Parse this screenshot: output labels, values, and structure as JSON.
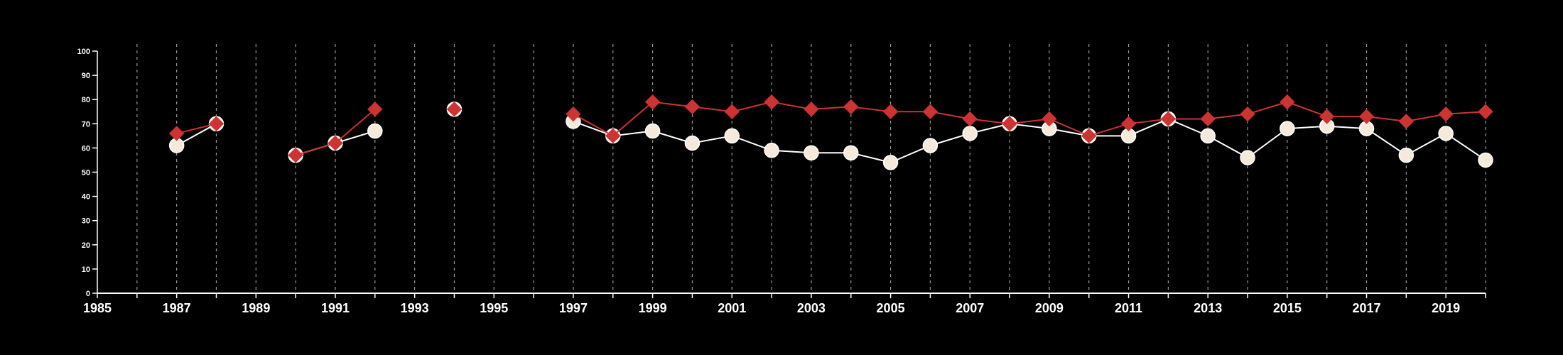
{
  "chart_data": {
    "type": "line",
    "title": "",
    "xlabel": "",
    "ylabel": "",
    "xlim": [
      1985,
      2020
    ],
    "ylim": [
      0,
      100
    ],
    "xticks": [
      1985,
      1987,
      1989,
      1991,
      1993,
      1995,
      1997,
      1999,
      2001,
      2003,
      2005,
      2007,
      2009,
      2011,
      2013,
      2015,
      2017,
      2019
    ],
    "yticks": [
      0,
      10,
      20,
      30,
      40,
      50,
      60,
      70,
      80,
      90,
      100
    ],
    "grid": "vertical dashed lines every year",
    "legend": "none",
    "series": [
      {
        "marker": "circle",
        "color": "#ffffff",
        "marker_fill": "#f5e9dc",
        "points": [
          [
            1987,
            61
          ],
          [
            1988,
            70
          ],
          [
            1990,
            57
          ],
          [
            1991,
            62
          ],
          [
            1992,
            67
          ],
          [
            1994,
            76
          ],
          [
            1997,
            71
          ],
          [
            1998,
            65
          ],
          [
            1999,
            67
          ],
          [
            2000,
            62
          ],
          [
            2001,
            65
          ],
          [
            2002,
            59
          ],
          [
            2003,
            58
          ],
          [
            2004,
            58
          ],
          [
            2005,
            54
          ],
          [
            2006,
            61
          ],
          [
            2007,
            66
          ],
          [
            2008,
            70
          ],
          [
            2009,
            68
          ],
          [
            2010,
            65
          ],
          [
            2011,
            65
          ],
          [
            2012,
            72
          ],
          [
            2013,
            65
          ],
          [
            2014,
            56
          ],
          [
            2015,
            68
          ],
          [
            2016,
            69
          ],
          [
            2017,
            68
          ],
          [
            2018,
            57
          ],
          [
            2019,
            66
          ],
          [
            2020,
            55
          ]
        ]
      },
      {
        "marker": "diamond",
        "color": "#cc3333",
        "marker_fill": "#cc3333",
        "points": [
          [
            1987,
            66
          ],
          [
            1988,
            70
          ],
          [
            1990,
            57
          ],
          [
            1991,
            62
          ],
          [
            1992,
            76
          ],
          [
            1994,
            76
          ],
          [
            1997,
            74
          ],
          [
            1998,
            65
          ],
          [
            1999,
            79
          ],
          [
            2000,
            77
          ],
          [
            2001,
            75
          ],
          [
            2002,
            79
          ],
          [
            2003,
            76
          ],
          [
            2004,
            77
          ],
          [
            2005,
            75
          ],
          [
            2006,
            75
          ],
          [
            2007,
            72
          ],
          [
            2008,
            70
          ],
          [
            2009,
            72
          ],
          [
            2010,
            65
          ],
          [
            2011,
            70
          ],
          [
            2012,
            72
          ],
          [
            2013,
            72
          ],
          [
            2014,
            74
          ],
          [
            2015,
            79
          ],
          [
            2016,
            73
          ],
          [
            2017,
            73
          ],
          [
            2018,
            71
          ],
          [
            2019,
            74
          ],
          [
            2020,
            75
          ]
        ]
      }
    ]
  }
}
